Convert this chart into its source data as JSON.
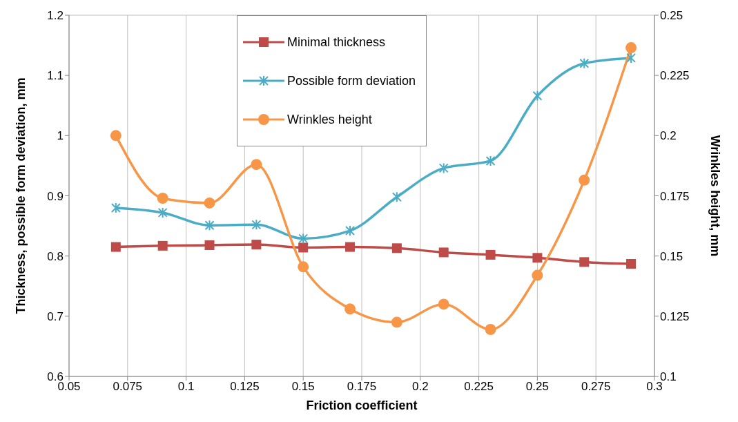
{
  "chart_data": {
    "type": "line",
    "xlabel": "Friction coefficient",
    "ylabel": "Thickness, possible form deviation, mm",
    "y2label": "Wrinkles height, mm",
    "x": [
      0.07,
      0.09,
      0.11,
      0.13,
      0.15,
      0.17,
      0.19,
      0.21,
      0.23,
      0.25,
      0.27,
      0.29
    ],
    "series": [
      {
        "name": "Minimal thickness",
        "color": "#be4b48",
        "marker": "square",
        "values": [
          0.815,
          0.817,
          0.818,
          0.819,
          0.814,
          0.815,
          0.813,
          0.806,
          0.802,
          0.797,
          0.79,
          0.787
        ]
      },
      {
        "name": "Possible form deviation",
        "color": "#4bacc6",
        "marker": "cross",
        "values": [
          0.88,
          0.872,
          0.851,
          0.852,
          0.829,
          0.842,
          0.898,
          0.946,
          0.958,
          1.066,
          1.12,
          1.129
        ]
      },
      {
        "name": "Wrinkles height",
        "color": "#f79646",
        "marker": "circle",
        "axis": "y2",
        "values": [
          0.2,
          0.174,
          0.172,
          0.188,
          0.1455,
          0.128,
          0.1225,
          0.13,
          0.1195,
          0.142,
          0.1815,
          0.2365
        ]
      }
    ],
    "xlim": [
      0.05,
      0.3
    ],
    "xticks": [
      0.05,
      0.075,
      0.1,
      0.125,
      0.15,
      0.175,
      0.2,
      0.225,
      0.25,
      0.275,
      0.3
    ],
    "ylim": [
      0.6,
      1.2
    ],
    "yticks": [
      0.6,
      0.7,
      0.8,
      0.9,
      1,
      1.1,
      1.2
    ],
    "y2lim": [
      0.1,
      0.25
    ],
    "y2ticks": [
      0.1,
      0.125,
      0.15,
      0.175,
      0.2,
      0.225,
      0.25
    ],
    "grid": true,
    "legend": "top"
  }
}
